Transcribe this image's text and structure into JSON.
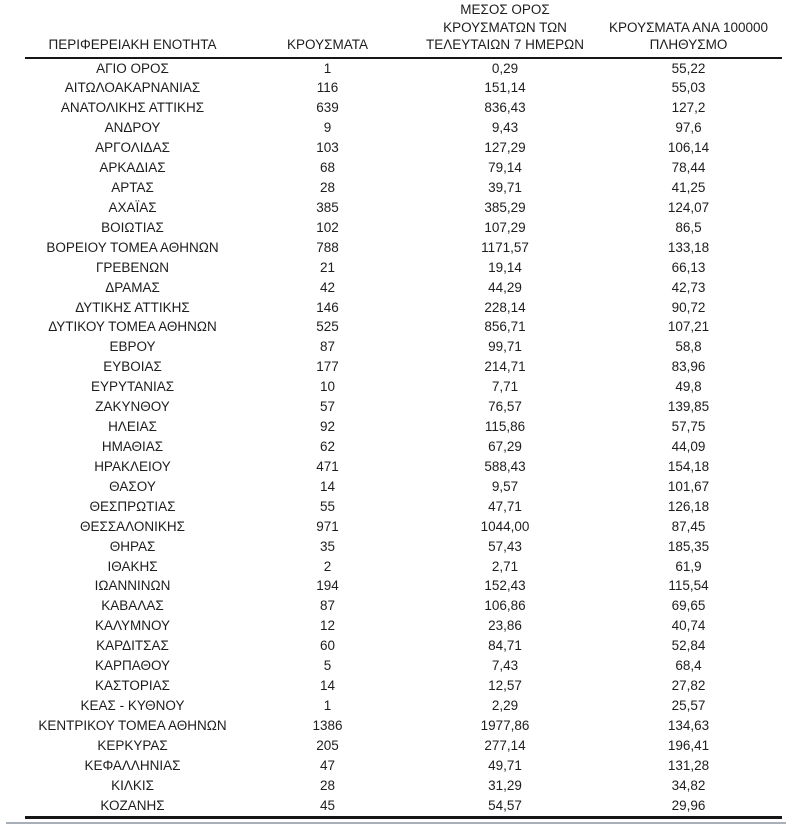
{
  "table": {
    "headers": {
      "regional_unit": "ΠΕΡΙΦΕΡΕΙΑΚΗ ΕΝΟΤΗΤΑ",
      "cases": "ΚΡΟΥΣΜΑΤΑ",
      "avg_7_days_lines": [
        "ΜΕΣΟΣ ΟΡΟΣ",
        "ΚΡΟΥΣΜΑΤΩΝ ΤΩΝ",
        "ΤΕΛΕΥΤΑΙΩΝ 7 ΗΜΕΡΩΝ"
      ],
      "per_100000_lines": [
        "ΚΡΟΥΣΜΑΤΑ ΑΝΑ 100000",
        "ΠΛΗΘΥΣΜΟ"
      ]
    },
    "rows": [
      {
        "region": "ΑΓΙΟ ΟΡΟΣ",
        "cases": "1",
        "avg_7_days": "0,29",
        "per_100000": "55,22"
      },
      {
        "region": "ΑΙΤΩΛΟΑΚΑΡΝΑΝΙΑΣ",
        "cases": "116",
        "avg_7_days": "151,14",
        "per_100000": "55,03"
      },
      {
        "region": "ΑΝΑΤΟΛΙΚΗΣ ΑΤΤΙΚΗΣ",
        "cases": "639",
        "avg_7_days": "836,43",
        "per_100000": "127,2"
      },
      {
        "region": "ΑΝΔΡΟΥ",
        "cases": "9",
        "avg_7_days": "9,43",
        "per_100000": "97,6"
      },
      {
        "region": "ΑΡΓΟΛΙΔΑΣ",
        "cases": "103",
        "avg_7_days": "127,29",
        "per_100000": "106,14"
      },
      {
        "region": "ΑΡΚΑΔΙΑΣ",
        "cases": "68",
        "avg_7_days": "79,14",
        "per_100000": "78,44"
      },
      {
        "region": "ΑΡΤΑΣ",
        "cases": "28",
        "avg_7_days": "39,71",
        "per_100000": "41,25"
      },
      {
        "region": "ΑΧΑΪΑΣ",
        "cases": "385",
        "avg_7_days": "385,29",
        "per_100000": "124,07"
      },
      {
        "region": "ΒΟΙΩΤΙΑΣ",
        "cases": "102",
        "avg_7_days": "107,29",
        "per_100000": "86,5"
      },
      {
        "region": "ΒΟΡΕΙΟΥ ΤΟΜΕΑ ΑΘΗΝΩΝ",
        "cases": "788",
        "avg_7_days": "1171,57",
        "per_100000": "133,18"
      },
      {
        "region": "ΓΡΕΒΕΝΩΝ",
        "cases": "21",
        "avg_7_days": "19,14",
        "per_100000": "66,13"
      },
      {
        "region": "ΔΡΑΜΑΣ",
        "cases": "42",
        "avg_7_days": "44,29",
        "per_100000": "42,73"
      },
      {
        "region": "ΔΥΤΙΚΗΣ ΑΤΤΙΚΗΣ",
        "cases": "146",
        "avg_7_days": "228,14",
        "per_100000": "90,72"
      },
      {
        "region": "ΔΥΤΙΚΟΥ ΤΟΜΕΑ ΑΘΗΝΩΝ",
        "cases": "525",
        "avg_7_days": "856,71",
        "per_100000": "107,21"
      },
      {
        "region": "ΕΒΡΟΥ",
        "cases": "87",
        "avg_7_days": "99,71",
        "per_100000": "58,8"
      },
      {
        "region": "ΕΥΒΟΙΑΣ",
        "cases": "177",
        "avg_7_days": "214,71",
        "per_100000": "83,96"
      },
      {
        "region": "ΕΥΡΥΤΑΝΙΑΣ",
        "cases": "10",
        "avg_7_days": "7,71",
        "per_100000": "49,8"
      },
      {
        "region": "ΖΑΚΥΝΘΟΥ",
        "cases": "57",
        "avg_7_days": "76,57",
        "per_100000": "139,85"
      },
      {
        "region": "ΗΛΕΙΑΣ",
        "cases": "92",
        "avg_7_days": "115,86",
        "per_100000": "57,75"
      },
      {
        "region": "ΗΜΑΘΙΑΣ",
        "cases": "62",
        "avg_7_days": "67,29",
        "per_100000": "44,09"
      },
      {
        "region": "ΗΡΑΚΛΕΙΟΥ",
        "cases": "471",
        "avg_7_days": "588,43",
        "per_100000": "154,18"
      },
      {
        "region": "ΘΑΣΟΥ",
        "cases": "14",
        "avg_7_days": "9,57",
        "per_100000": "101,67"
      },
      {
        "region": "ΘΕΣΠΡΩΤΙΑΣ",
        "cases": "55",
        "avg_7_days": "47,71",
        "per_100000": "126,18"
      },
      {
        "region": "ΘΕΣΣΑΛΟΝΙΚΗΣ",
        "cases": "971",
        "avg_7_days": "1044,00",
        "per_100000": "87,45"
      },
      {
        "region": "ΘΗΡΑΣ",
        "cases": "35",
        "avg_7_days": "57,43",
        "per_100000": "185,35"
      },
      {
        "region": "ΙΘΑΚΗΣ",
        "cases": "2",
        "avg_7_days": "2,71",
        "per_100000": "61,9"
      },
      {
        "region": "ΙΩΑΝΝΙΝΩΝ",
        "cases": "194",
        "avg_7_days": "152,43",
        "per_100000": "115,54"
      },
      {
        "region": "ΚΑΒΑΛΑΣ",
        "cases": "87",
        "avg_7_days": "106,86",
        "per_100000": "69,65"
      },
      {
        "region": "ΚΑΛΥΜΝΟΥ",
        "cases": "12",
        "avg_7_days": "23,86",
        "per_100000": "40,74"
      },
      {
        "region": "ΚΑΡΔΙΤΣΑΣ",
        "cases": "60",
        "avg_7_days": "84,71",
        "per_100000": "52,84"
      },
      {
        "region": "ΚΑΡΠΑΘΟΥ",
        "cases": "5",
        "avg_7_days": "7,43",
        "per_100000": "68,4"
      },
      {
        "region": "ΚΑΣΤΟΡΙΑΣ",
        "cases": "14",
        "avg_7_days": "12,57",
        "per_100000": "27,82"
      },
      {
        "region": "ΚΕΑΣ - ΚΥΘΝΟΥ",
        "cases": "1",
        "avg_7_days": "2,29",
        "per_100000": "25,57"
      },
      {
        "region": "ΚΕΝΤΡΙΚΟΥ ΤΟΜΕΑ ΑΘΗΝΩΝ",
        "cases": "1386",
        "avg_7_days": "1977,86",
        "per_100000": "134,63"
      },
      {
        "region": "ΚΕΡΚΥΡΑΣ",
        "cases": "205",
        "avg_7_days": "277,14",
        "per_100000": "196,41"
      },
      {
        "region": "ΚΕΦΑΛΛΗΝΙΑΣ",
        "cases": "47",
        "avg_7_days": "49,71",
        "per_100000": "131,28"
      },
      {
        "region": "ΚΙΛΚΙΣ",
        "cases": "28",
        "avg_7_days": "31,29",
        "per_100000": "34,82"
      },
      {
        "region": "ΚΟΖΑΝΗΣ",
        "cases": "45",
        "avg_7_days": "54,57",
        "per_100000": "29,96"
      }
    ]
  },
  "colors": {
    "text": "#1d1d1d",
    "rule": "#161616",
    "shadow_rule": "#a9afb8"
  }
}
